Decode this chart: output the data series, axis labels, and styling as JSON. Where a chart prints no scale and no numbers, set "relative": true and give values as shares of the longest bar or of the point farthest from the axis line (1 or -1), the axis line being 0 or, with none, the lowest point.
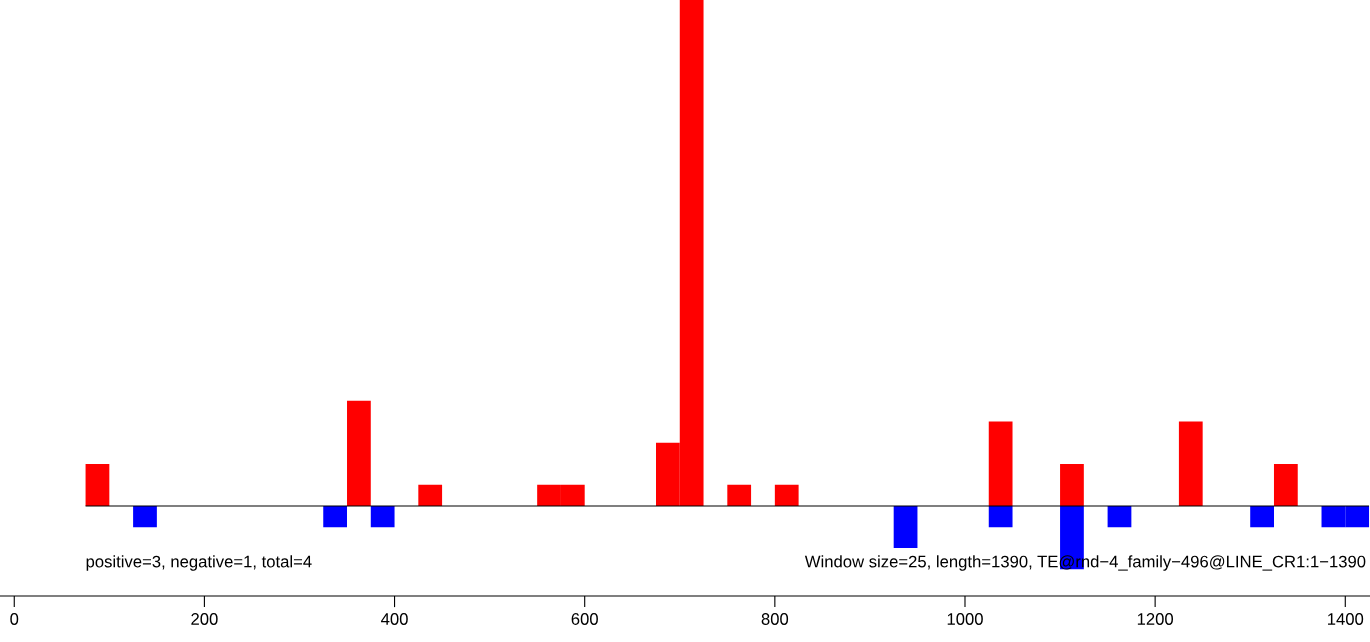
{
  "chart_data": {
    "type": "bar",
    "relative": true,
    "xlim": [
      -15,
      1426
    ],
    "xticks": [
      0,
      200,
      400,
      600,
      800,
      1000,
      1200,
      1400
    ],
    "series": [
      {
        "color": "#ff0000",
        "x": [
          87.5,
          362.5,
          437.5,
          562.5,
          587.5,
          687.5,
          712.5,
          762.5,
          812.5,
          1037.5,
          1112.5,
          1237.5,
          1337.5
        ],
        "values": [
          0.083,
          0.208,
          0.042,
          0.042,
          0.042,
          0.125,
          1,
          0.042,
          0.042,
          0.167,
          0.083,
          0.167,
          0.083
        ]
      },
      {
        "color": "#0000ff",
        "x": [
          137.5,
          337.5,
          387.5,
          937.5,
          1037.5,
          1112.5,
          1162.5,
          1312.5,
          1387.5,
          1412.5
        ],
        "values": [
          -0.042,
          -0.042,
          -0.042,
          -0.083,
          -0.042,
          -0.125,
          -0.042,
          -0.042,
          -0.042,
          -0.042
        ]
      }
    ],
    "annotations": [
      "positive=3, negative=1, total=4",
      "Window size=25, length=1390, TE@rnd−4_family−496@LINE_CR1:1−1390"
    ],
    "grid": false,
    "legend": false
  }
}
